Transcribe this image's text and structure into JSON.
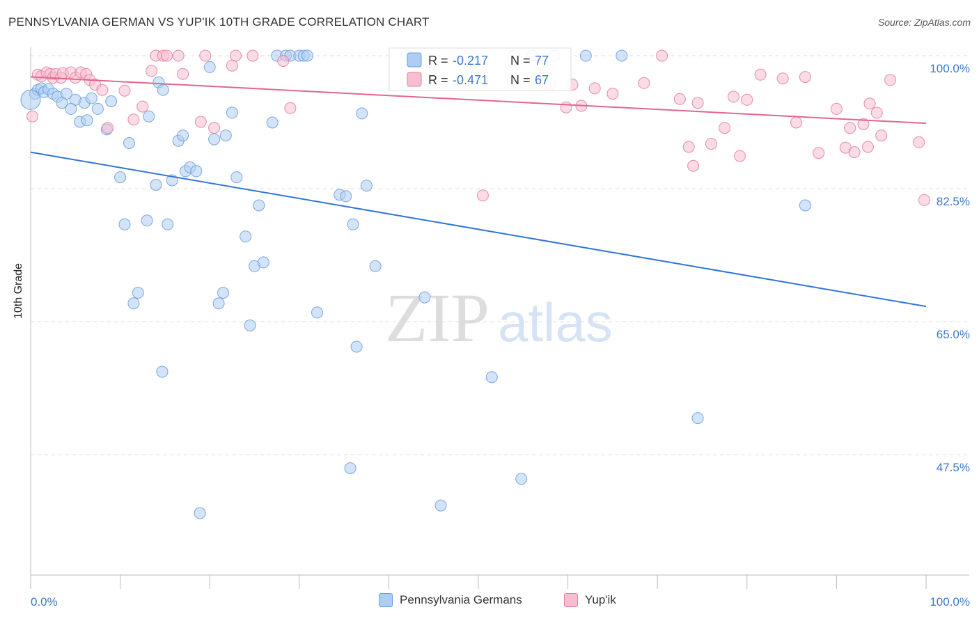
{
  "title": "PENNSYLVANIA GERMAN VS YUP'IK 10TH GRADE CORRELATION CHART",
  "source": "Source: ZipAtlas.com",
  "watermark": {
    "zip": "ZIP",
    "atlas": "atlas"
  },
  "chart_data": {
    "type": "scatter",
    "xlabel": "",
    "ylabel": "10th Grade",
    "xlim": [
      0,
      100
    ],
    "ylim": [
      32,
      101
    ],
    "x_tick_labels": {
      "left": "0.0%",
      "right": "100.0%"
    },
    "y_ticks": [
      {
        "value": 100.0,
        "label": "100.0%"
      },
      {
        "value": 82.5,
        "label": "82.5%"
      },
      {
        "value": 65.0,
        "label": "65.0%"
      },
      {
        "value": 47.5,
        "label": "47.5%"
      }
    ],
    "legend": {
      "r_label": "R =",
      "n_label": "N =",
      "entries": [
        {
          "name": "Pennsylvania Germans",
          "r": "-0.217",
          "n": "77",
          "color": "#6b9fe0",
          "fill": "#aecdf3"
        },
        {
          "name": "Yup'ik",
          "r": "-0.471",
          "n": "67",
          "color": "#e67fa0",
          "fill": "#f7bdd0"
        }
      ]
    },
    "series": [
      {
        "name": "Pennsylvania Germans",
        "color": "#6b9fe0",
        "line_color": "#2f76d6",
        "trend": [
          [
            0,
            87.3
          ],
          [
            100,
            67.0
          ]
        ],
        "points": [
          [
            0.5,
            95
          ],
          [
            0.8,
            95.5
          ],
          [
            1.2,
            95.7
          ],
          [
            1.5,
            95.2
          ],
          [
            2,
            95.6
          ],
          [
            2.5,
            95
          ],
          [
            3,
            94.6
          ],
          [
            4,
            95
          ],
          [
            3.5,
            93.8
          ],
          [
            5,
            94.2
          ],
          [
            4.5,
            93
          ],
          [
            6,
            93.8
          ],
          [
            5.5,
            91.3
          ],
          [
            6.3,
            91.5
          ],
          [
            6.8,
            94.4
          ],
          [
            7.5,
            93
          ],
          [
            8.5,
            90.3
          ],
          [
            9,
            94
          ],
          [
            10,
            84
          ],
          [
            10.5,
            77.8
          ],
          [
            11,
            88.5
          ],
          [
            11.5,
            67.4
          ],
          [
            12,
            68.8
          ],
          [
            13,
            78.3
          ],
          [
            13.2,
            92
          ],
          [
            14,
            83
          ],
          [
            14.3,
            96.5
          ],
          [
            14.8,
            95.5
          ],
          [
            14.7,
            58.4
          ],
          [
            15.3,
            77.8
          ],
          [
            15.8,
            83.6
          ],
          [
            16.5,
            88.8
          ],
          [
            17,
            89.5
          ],
          [
            17.3,
            84.8
          ],
          [
            17.8,
            85.3
          ],
          [
            18.5,
            84.8
          ],
          [
            18.9,
            39.8
          ],
          [
            20,
            98.5
          ],
          [
            20.5,
            89
          ],
          [
            21,
            67.4
          ],
          [
            21.5,
            68.8
          ],
          [
            21.8,
            89.5
          ],
          [
            22.5,
            92.5
          ],
          [
            23,
            84
          ],
          [
            24,
            76.2
          ],
          [
            24.5,
            64.5
          ],
          [
            25,
            72.3
          ],
          [
            25.5,
            80.3
          ],
          [
            26,
            72.8
          ],
          [
            27,
            91.2
          ],
          [
            27.5,
            100
          ],
          [
            28.5,
            100
          ],
          [
            29,
            100
          ],
          [
            30,
            100
          ],
          [
            30.5,
            100
          ],
          [
            30.9,
            100
          ],
          [
            32,
            66.2
          ],
          [
            34.5,
            81.7
          ],
          [
            35.2,
            81.5
          ],
          [
            35.7,
            45.7
          ],
          [
            36,
            77.8
          ],
          [
            36.4,
            61.7
          ],
          [
            37,
            92.4
          ],
          [
            37.5,
            82.9
          ],
          [
            38.5,
            72.3
          ],
          [
            42,
            100
          ],
          [
            44,
            68.2
          ],
          [
            45.8,
            40.8
          ],
          [
            51.5,
            57.7
          ],
          [
            54,
            100
          ],
          [
            54.8,
            44.3
          ],
          [
            56,
            100
          ],
          [
            58.5,
            100
          ],
          [
            62,
            100
          ],
          [
            66,
            100
          ],
          [
            74.5,
            52.3
          ],
          [
            86.5,
            80.3
          ]
        ]
      },
      {
        "name": "Yup'ik",
        "color": "#e67fa0",
        "line_color": "#e06690",
        "trend": [
          [
            0,
            97.2
          ],
          [
            100,
            91.1
          ]
        ],
        "points": [
          [
            0.2,
            92
          ],
          [
            0.8,
            97.5
          ],
          [
            1.2,
            97.3
          ],
          [
            1.8,
            97.8
          ],
          [
            2.2,
            97.6
          ],
          [
            2.5,
            97.1
          ],
          [
            2.8,
            97.6
          ],
          [
            3.4,
            97.1
          ],
          [
            3.6,
            97.7
          ],
          [
            4.5,
            97.8
          ],
          [
            5,
            97.1
          ],
          [
            5.6,
            97.8
          ],
          [
            6.2,
            97.6
          ],
          [
            6.6,
            96.8
          ],
          [
            7.2,
            96.2
          ],
          [
            8,
            95.5
          ],
          [
            8.6,
            90.5
          ],
          [
            10.5,
            95.4
          ],
          [
            11.5,
            91.6
          ],
          [
            12.5,
            93.3
          ],
          [
            13.5,
            98
          ],
          [
            14,
            100
          ],
          [
            14.8,
            100
          ],
          [
            15.2,
            100
          ],
          [
            16.5,
            100
          ],
          [
            17,
            97.6
          ],
          [
            19,
            91.3
          ],
          [
            19.5,
            100
          ],
          [
            20.5,
            90.5
          ],
          [
            22.5,
            98.7
          ],
          [
            22.9,
            100
          ],
          [
            24.8,
            100
          ],
          [
            28.2,
            99.3
          ],
          [
            29,
            93.1
          ],
          [
            50.5,
            81.6
          ],
          [
            58,
            96.2
          ],
          [
            59.8,
            93.2
          ],
          [
            60.5,
            96.2
          ],
          [
            61.5,
            93.4
          ],
          [
            63,
            95.7
          ],
          [
            65,
            95
          ],
          [
            68.5,
            96.4
          ],
          [
            70.5,
            100
          ],
          [
            72.5,
            94.3
          ],
          [
            73.5,
            88
          ],
          [
            74,
            85.5
          ],
          [
            74.5,
            93.8
          ],
          [
            76,
            88.4
          ],
          [
            77.5,
            90.5
          ],
          [
            78.5,
            94.6
          ],
          [
            79.2,
            86.8
          ],
          [
            80,
            94.2
          ],
          [
            81.5,
            97.5
          ],
          [
            84,
            97
          ],
          [
            85.5,
            91.2
          ],
          [
            86.5,
            97.2
          ],
          [
            88,
            87.2
          ],
          [
            90,
            93
          ],
          [
            91,
            87.9
          ],
          [
            91.5,
            90.5
          ],
          [
            92,
            87.3
          ],
          [
            93,
            91
          ],
          [
            93.5,
            88
          ],
          [
            93.7,
            93.7
          ],
          [
            94.5,
            92.5
          ],
          [
            95,
            89.5
          ],
          [
            96,
            96.8
          ],
          [
            99.2,
            88.6
          ],
          [
            99.8,
            81
          ]
        ]
      }
    ]
  }
}
